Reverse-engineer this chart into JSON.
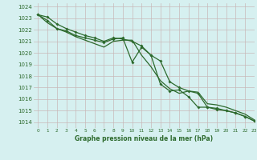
{
  "title": "Graphe pression niveau de la mer (hPa)",
  "bg_color": "#d6f0f0",
  "grid_color": "#c8b8b8",
  "line_color": "#2d6a2d",
  "xlim": [
    -0.5,
    23
  ],
  "ylim": [
    1013.5,
    1024.3
  ],
  "xticks": [
    0,
    1,
    2,
    3,
    4,
    5,
    6,
    7,
    8,
    9,
    10,
    11,
    12,
    13,
    14,
    15,
    16,
    17,
    18,
    19,
    20,
    21,
    22,
    23
  ],
  "yticks": [
    1014,
    1015,
    1016,
    1017,
    1018,
    1019,
    1020,
    1021,
    1022,
    1023,
    1024
  ],
  "series1_x": [
    0,
    1,
    2,
    3,
    4,
    5,
    6,
    7,
    8,
    9,
    10,
    11,
    12,
    13,
    14,
    15,
    16,
    17,
    18,
    19,
    20,
    21,
    22,
    23
  ],
  "series1_y": [
    1023.3,
    1023.1,
    1022.5,
    1022.1,
    1021.8,
    1021.5,
    1021.3,
    1021.0,
    1021.3,
    1021.2,
    1021.0,
    1020.6,
    1019.8,
    1019.3,
    1017.5,
    1017.0,
    1016.7,
    1016.5,
    1015.3,
    1015.2,
    1015.0,
    1014.8,
    1014.5,
    1014.1
  ],
  "series2_x": [
    0,
    1,
    2,
    3,
    4,
    5,
    6,
    7,
    8,
    9,
    10,
    11,
    12,
    13,
    14,
    15,
    16,
    17,
    18,
    19,
    20,
    21,
    22,
    23
  ],
  "series2_y": [
    1023.3,
    1022.8,
    1022.1,
    1021.9,
    1021.5,
    1021.3,
    1021.1,
    1020.9,
    1021.2,
    1021.3,
    1019.2,
    1020.5,
    1019.8,
    1017.3,
    1016.7,
    1016.8,
    1016.2,
    1015.3,
    1015.3,
    1015.1,
    1015.0,
    1014.8,
    1014.5,
    1014.1
  ],
  "series3_x": [
    0,
    1,
    2,
    3,
    4,
    5,
    6,
    7,
    8,
    9,
    10,
    11,
    12,
    13,
    14,
    15,
    16,
    17,
    18,
    19,
    20,
    21,
    22,
    23
  ],
  "series3_y": [
    1023.3,
    1022.6,
    1022.1,
    1021.8,
    1021.4,
    1021.1,
    1020.8,
    1020.5,
    1021.0,
    1021.1,
    1021.1,
    1019.8,
    1018.8,
    1017.6,
    1016.9,
    1016.5,
    1016.7,
    1016.6,
    1015.6,
    1015.5,
    1015.3,
    1015.0,
    1014.7,
    1014.2
  ]
}
